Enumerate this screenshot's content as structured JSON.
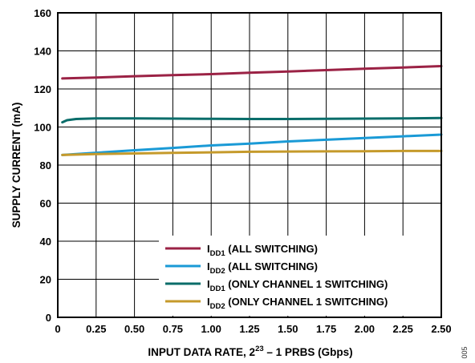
{
  "chart_data": {
    "type": "line",
    "xlabel": {
      "pre": "INPUT DATA RATE, 2",
      "sup": "23",
      "post": " – 1 PRBS (Gbps)"
    },
    "ylabel": "SUPPLY CURRENT (mA)",
    "xlim": [
      0,
      2.5
    ],
    "ylim": [
      0,
      160
    ],
    "xticks": [
      "0",
      "0.25",
      "0.50",
      "0.75",
      "1.00",
      "1.25",
      "1.50",
      "1.75",
      "2.00",
      "2.25",
      "2.50"
    ],
    "yticks": [
      "0",
      "20",
      "40",
      "60",
      "80",
      "100",
      "120",
      "140",
      "160"
    ],
    "grid": true,
    "legend_position": "bottom-right",
    "series": [
      {
        "main": "I",
        "sub": "DD1",
        "suffix": " (ALL SWITCHING)",
        "color": "#9b2245",
        "points": [
          [
            0.03,
            125.5
          ],
          [
            0.25,
            126.0
          ],
          [
            0.5,
            126.7
          ],
          [
            0.75,
            127.3
          ],
          [
            1.0,
            127.8
          ],
          [
            1.25,
            128.5
          ],
          [
            1.5,
            129.2
          ],
          [
            1.75,
            129.9
          ],
          [
            2.0,
            130.6
          ],
          [
            2.25,
            131.3
          ],
          [
            2.5,
            132.0
          ]
        ]
      },
      {
        "main": "I",
        "sub": "DD2",
        "suffix": " (ALL SWITCHING)",
        "color": "#1a9ad6",
        "points": [
          [
            0.03,
            85.3
          ],
          [
            0.25,
            86.5
          ],
          [
            0.5,
            87.8
          ],
          [
            0.75,
            89.0
          ],
          [
            1.0,
            90.3
          ],
          [
            1.25,
            91.3
          ],
          [
            1.5,
            92.4
          ],
          [
            1.75,
            93.3
          ],
          [
            2.0,
            94.2
          ],
          [
            2.25,
            95.1
          ],
          [
            2.5,
            96.0
          ]
        ]
      },
      {
        "main": "I",
        "sub": "DD1",
        "suffix": " (ONLY CHANNEL 1 SWITCHING)",
        "color": "#0a6d6a",
        "points": [
          [
            0.03,
            102.5
          ],
          [
            0.06,
            103.6
          ],
          [
            0.12,
            104.2
          ],
          [
            0.25,
            104.5
          ],
          [
            0.5,
            104.5
          ],
          [
            0.75,
            104.4
          ],
          [
            1.0,
            104.3
          ],
          [
            1.25,
            104.2
          ],
          [
            1.5,
            104.2
          ],
          [
            1.75,
            104.3
          ],
          [
            2.0,
            104.4
          ],
          [
            2.25,
            104.5
          ],
          [
            2.5,
            104.7
          ]
        ]
      },
      {
        "main": "I",
        "sub": "DD2",
        "suffix": " (ONLY CHANNEL 1 SWITCHING)",
        "color": "#c59a2b",
        "points": [
          [
            0.03,
            85.3
          ],
          [
            0.25,
            85.8
          ],
          [
            0.5,
            86.1
          ],
          [
            0.75,
            86.4
          ],
          [
            1.0,
            86.7
          ],
          [
            1.25,
            87.0
          ],
          [
            1.5,
            87.1
          ],
          [
            1.75,
            87.2
          ],
          [
            2.0,
            87.3
          ],
          [
            2.25,
            87.4
          ],
          [
            2.5,
            87.4
          ]
        ]
      }
    ]
  },
  "figure_id": "005"
}
